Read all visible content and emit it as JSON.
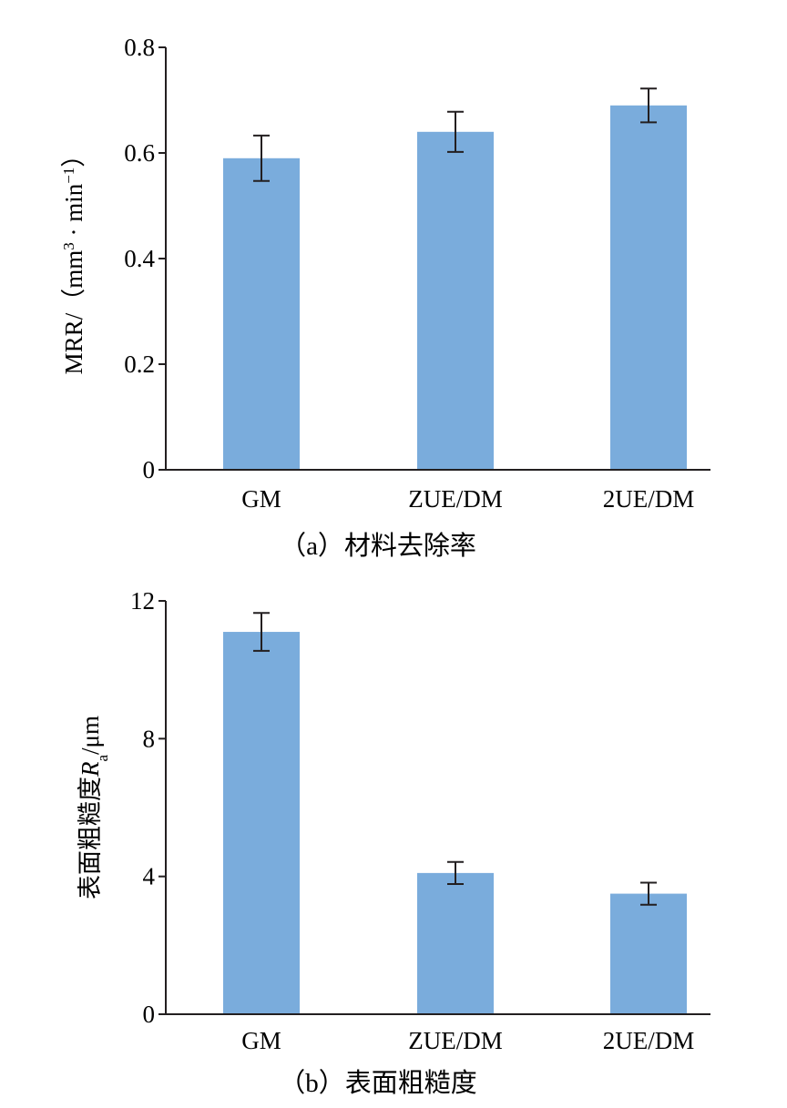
{
  "colors": {
    "bar": "#7aacdc",
    "axis": "#231f20"
  },
  "chart_data": [
    {
      "type": "bar",
      "categories": [
        "GM",
        "ZUE/DM",
        "2UE/DM"
      ],
      "values": [
        0.59,
        0.64,
        0.69
      ],
      "errors": [
        0.043,
        0.038,
        0.032
      ],
      "ylim": [
        0,
        0.8
      ],
      "yticks": [
        "0",
        "0.2",
        "0.4",
        "0.6",
        "0.8"
      ],
      "ylabel": {
        "main": "MRR/（mm",
        "sup1": "3",
        "mid": " · min",
        "sup2": "−1",
        "end": "）"
      },
      "caption": "（a）材料去除率",
      "grid": false,
      "legend": "none"
    },
    {
      "type": "bar",
      "categories": [
        "GM",
        "ZUE/DM",
        "2UE/DM"
      ],
      "values": [
        11.1,
        4.1,
        3.5
      ],
      "errors": [
        0.55,
        0.32,
        0.32
      ],
      "ylim": [
        0,
        12
      ],
      "yticks": [
        "0",
        "4",
        "8",
        "12"
      ],
      "ylabel": {
        "main": "表面粗糙度",
        "var": "R",
        "sub": "a",
        "end": "/μm"
      },
      "caption": "（b）表面粗糙度",
      "grid": false,
      "legend": "none"
    }
  ]
}
